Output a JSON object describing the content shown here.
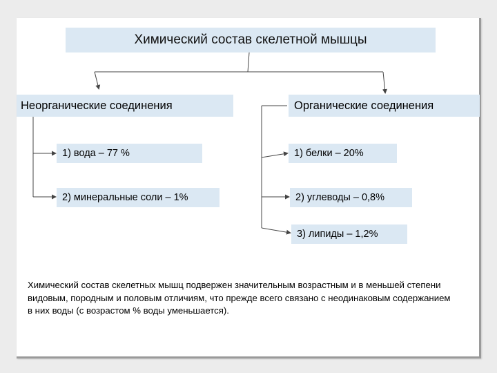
{
  "title": "Химический состав скелетной мышцы",
  "branches": {
    "left": {
      "label": "Неорганические соединения",
      "items": [
        "1) вода – 77 %",
        "2) минеральные соли – 1%"
      ]
    },
    "right": {
      "label": "Органические соединения",
      "items": [
        "1) белки – 20%",
        "2) углеводы – 0,8%",
        "3) липиды – 1,2%"
      ]
    }
  },
  "note": "Химический состав скелетных мышц подвержен значительным возрастным и в меньшей степени видовым, породным и половым отличиям, что прежде всего связано с неодинаковым содержанием в них воды (с возрастом % воды уменьшается).",
  "colors": {
    "box_fill": "#dbe8f3",
    "line": "#444444",
    "page_frame": "#9a9a9a"
  }
}
